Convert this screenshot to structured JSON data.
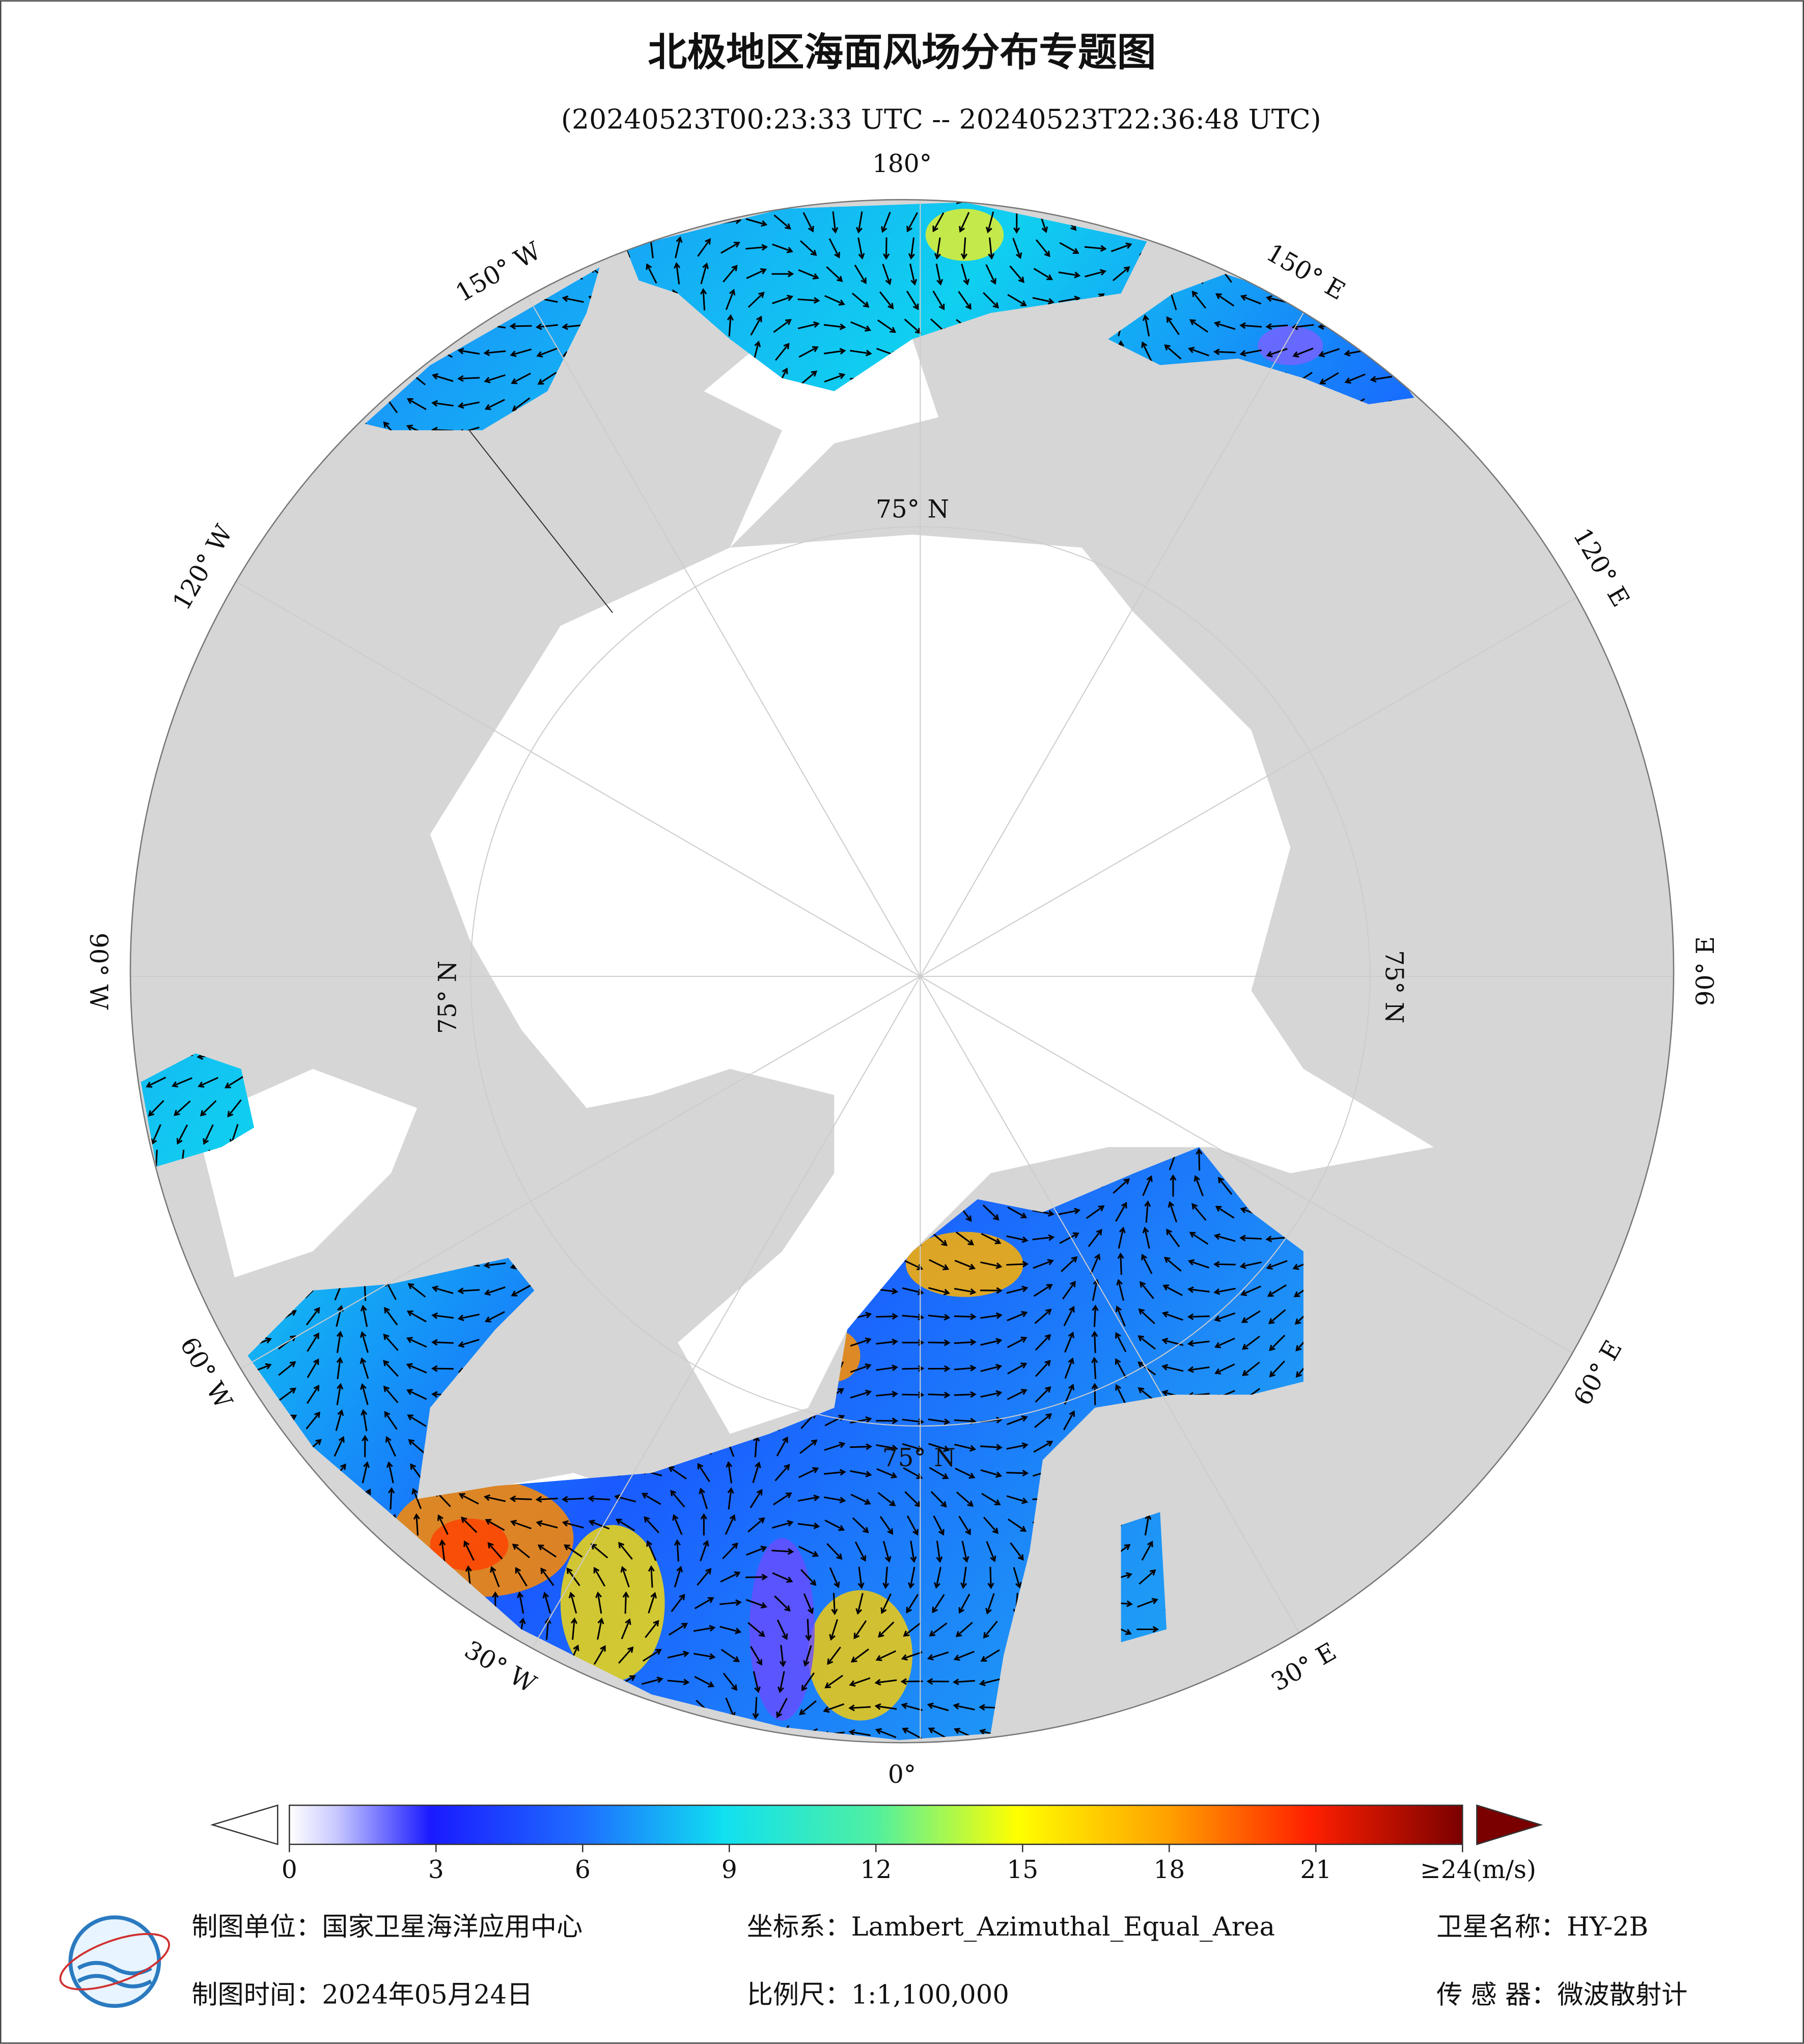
{
  "header": {
    "title": "北极地区海面风场分布专题图",
    "subtitle": "(20240523T00:23:33 UTC -- 20240523T22:36:48 UTC)"
  },
  "map": {
    "lon_labels": [
      {
        "lon": 180,
        "label": "180°"
      },
      {
        "lon": 150,
        "label": "150° E"
      },
      {
        "lon": 120,
        "label": "120° E"
      },
      {
        "lon": 90,
        "label": "90° E"
      },
      {
        "lon": 60,
        "label": "60° E"
      },
      {
        "lon": 30,
        "label": "30° E"
      },
      {
        "lon": 0,
        "label": "0°"
      },
      {
        "lon": -30,
        "label": "30° W"
      },
      {
        "lon": -60,
        "label": "60° W"
      },
      {
        "lon": -90,
        "label": "90° W"
      },
      {
        "lon": -120,
        "label": "120° W"
      },
      {
        "lon": -150,
        "label": "150° W"
      }
    ],
    "lat_label": "75° N"
  },
  "colorbar": {
    "ticks": [
      0,
      3,
      6,
      9,
      12,
      15,
      18,
      21,
      {
        "value": 24,
        "label": "≥24(m/s)"
      }
    ]
  },
  "footer": {
    "unit": "制图单位：国家卫星海洋应用中心",
    "crs": "坐标系：Lambert_Azimuthal_Equal_Area",
    "satellite": "卫星名称：HY-2B",
    "date": "制图时间：2024年05月24日",
    "scale": "比例尺：1:1,100,000",
    "sensor": "传 感 器：微波散射计"
  }
}
